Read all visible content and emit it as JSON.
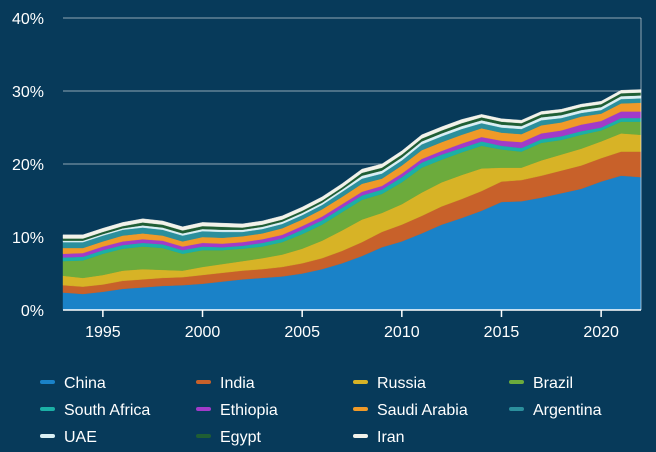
{
  "chart_data": {
    "type": "area",
    "stacked": true,
    "xlabel": "",
    "ylabel": "",
    "xlim": [
      1993,
      2022
    ],
    "ylim": [
      0,
      40
    ],
    "y_ticks": [
      0,
      10,
      20,
      30,
      40
    ],
    "y_tick_labels": [
      "0%",
      "10%",
      "20%",
      "30%",
      "40%"
    ],
    "x_ticks": [
      1995,
      2000,
      2005,
      2010,
      2015,
      2020
    ],
    "x_tick_labels": [
      "1995",
      "2000",
      "2005",
      "2010",
      "2015",
      "2020"
    ],
    "grid": "horizontal",
    "legend_position": "bottom",
    "x": [
      1993,
      1994,
      1995,
      1996,
      1997,
      1998,
      1999,
      2000,
      2001,
      2002,
      2003,
      2004,
      2005,
      2006,
      2007,
      2008,
      2009,
      2010,
      2011,
      2012,
      2013,
      2014,
      2015,
      2016,
      2017,
      2018,
      2019,
      2020,
      2021,
      2022
    ],
    "series": [
      {
        "name": "China",
        "color": "#1a82c8",
        "values": [
          2.4,
          2.2,
          2.5,
          2.9,
          3.1,
          3.3,
          3.4,
          3.6,
          3.9,
          4.2,
          4.4,
          4.6,
          5.0,
          5.6,
          6.4,
          7.4,
          8.6,
          9.4,
          10.5,
          11.7,
          12.6,
          13.6,
          14.8,
          14.9,
          15.4,
          16.0,
          16.6,
          17.6,
          18.4,
          18.2
        ]
      },
      {
        "name": "India",
        "color": "#c8612a",
        "values": [
          1.0,
          1.0,
          1.0,
          1.1,
          1.1,
          1.1,
          1.1,
          1.2,
          1.2,
          1.2,
          1.2,
          1.3,
          1.4,
          1.5,
          1.7,
          1.9,
          2.1,
          2.3,
          2.4,
          2.5,
          2.6,
          2.7,
          2.8,
          2.9,
          3.0,
          3.1,
          3.2,
          3.2,
          3.3,
          3.5
        ]
      },
      {
        "name": "Russia",
        "color": "#d7b326",
        "values": [
          1.3,
          1.2,
          1.3,
          1.4,
          1.4,
          1.1,
          0.9,
          1.1,
          1.2,
          1.3,
          1.5,
          1.7,
          2.0,
          2.4,
          2.8,
          3.1,
          2.6,
          2.8,
          3.2,
          3.3,
          3.3,
          3.1,
          1.9,
          1.7,
          2.1,
          2.2,
          2.3,
          2.3,
          2.5,
          2.3
        ]
      },
      {
        "name": "Brazil",
        "color": "#6cab3c",
        "values": [
          2.0,
          2.4,
          2.9,
          3.0,
          3.1,
          3.0,
          2.3,
          2.3,
          1.9,
          1.7,
          1.6,
          1.7,
          2.0,
          2.2,
          2.5,
          2.7,
          2.6,
          3.0,
          3.4,
          3.1,
          3.1,
          3.1,
          2.5,
          2.2,
          2.4,
          2.0,
          1.9,
          1.5,
          1.6,
          1.8
        ]
      },
      {
        "name": "South Africa",
        "color": "#1bb0a6",
        "values": [
          0.5,
          0.5,
          0.5,
          0.5,
          0.5,
          0.5,
          0.5,
          0.5,
          0.4,
          0.4,
          0.5,
          0.5,
          0.6,
          0.6,
          0.6,
          0.6,
          0.6,
          0.7,
          0.7,
          0.7,
          0.6,
          0.6,
          0.5,
          0.5,
          0.5,
          0.5,
          0.5,
          0.4,
          0.5,
          0.5
        ]
      },
      {
        "name": "Ethiopia",
        "color": "#a13bc9",
        "values": [
          0.5,
          0.5,
          0.5,
          0.5,
          0.5,
          0.5,
          0.5,
          0.5,
          0.5,
          0.5,
          0.5,
          0.5,
          0.5,
          0.5,
          0.5,
          0.5,
          0.5,
          0.5,
          0.5,
          0.5,
          0.6,
          0.6,
          0.7,
          0.8,
          0.8,
          0.8,
          0.9,
          0.9,
          0.9,
          0.9
        ]
      },
      {
        "name": "Saudi Arabia",
        "color": "#f09a28",
        "values": [
          0.8,
          0.7,
          0.7,
          0.8,
          0.8,
          0.7,
          0.7,
          0.8,
          0.8,
          0.8,
          0.8,
          0.9,
          0.9,
          1.0,
          1.0,
          1.1,
          1.0,
          1.1,
          1.2,
          1.2,
          1.2,
          1.2,
          1.1,
          1.1,
          1.1,
          1.1,
          1.1,
          1.0,
          1.1,
          1.2
        ]
      },
      {
        "name": "Argentina",
        "color": "#2b8f9c",
        "values": [
          0.8,
          0.8,
          0.8,
          0.8,
          0.8,
          0.8,
          0.8,
          0.8,
          0.8,
          0.6,
          0.6,
          0.6,
          0.6,
          0.6,
          0.7,
          0.7,
          0.7,
          0.7,
          0.8,
          0.8,
          0.8,
          0.7,
          0.7,
          0.7,
          0.7,
          0.6,
          0.5,
          0.5,
          0.6,
          0.6
        ]
      },
      {
        "name": "UAE",
        "color": "#d9eff4",
        "values": [
          0.2,
          0.2,
          0.2,
          0.2,
          0.3,
          0.3,
          0.3,
          0.3,
          0.3,
          0.3,
          0.3,
          0.3,
          0.3,
          0.3,
          0.3,
          0.4,
          0.4,
          0.4,
          0.4,
          0.4,
          0.4,
          0.4,
          0.4,
          0.4,
          0.4,
          0.4,
          0.4,
          0.4,
          0.4,
          0.4
        ]
      },
      {
        "name": "Egypt",
        "color": "#1f5e34",
        "values": [
          0.3,
          0.3,
          0.3,
          0.3,
          0.4,
          0.4,
          0.4,
          0.4,
          0.4,
          0.3,
          0.3,
          0.3,
          0.3,
          0.3,
          0.3,
          0.4,
          0.4,
          0.4,
          0.4,
          0.4,
          0.4,
          0.4,
          0.4,
          0.4,
          0.4,
          0.4,
          0.4,
          0.4,
          0.4,
          0.4
        ]
      },
      {
        "name": "Iran",
        "color": "#f2f2ea",
        "values": [
          0.5,
          0.5,
          0.5,
          0.5,
          0.5,
          0.5,
          0.5,
          0.5,
          0.5,
          0.5,
          0.5,
          0.5,
          0.5,
          0.5,
          0.5,
          0.5,
          0.5,
          0.5,
          0.5,
          0.5,
          0.5,
          0.4,
          0.4,
          0.4,
          0.4,
          0.4,
          0.4,
          0.4,
          0.4,
          0.4
        ]
      }
    ]
  }
}
